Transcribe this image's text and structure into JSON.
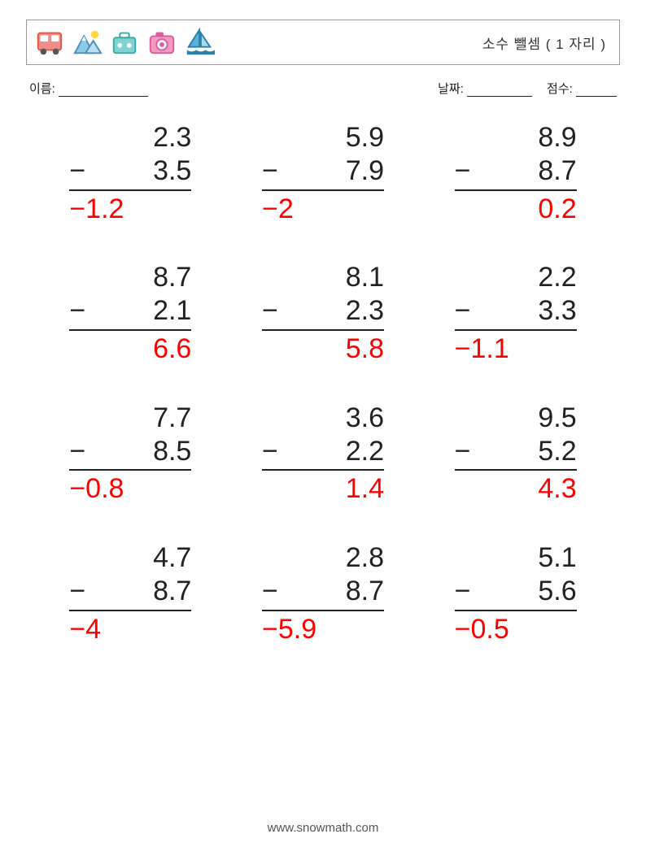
{
  "header": {
    "title": "소수 뺄셈 ( 1 자리 )"
  },
  "labels": {
    "name": "이름:",
    "date": "날짜:",
    "score": "점수:"
  },
  "style": {
    "problem_fontsize": 34,
    "text_color": "#222222",
    "answer_color": "#ff0000",
    "rule_color": "#222222",
    "border_color": "#999999",
    "background_color": "#ffffff"
  },
  "icons": [
    {
      "name": "bus-icon",
      "fill": "#f28c8c",
      "stroke": "#d95b43"
    },
    {
      "name": "mountain-icon",
      "fill": "#8fc9e8",
      "stroke": "#4a90b8"
    },
    {
      "name": "suitcase-icon",
      "fill": "#7fd3d3",
      "stroke": "#3aa7a7"
    },
    {
      "name": "camera-icon",
      "fill": "#f49ac1",
      "stroke": "#d95ba0"
    },
    {
      "name": "sailboat-icon",
      "fill": "#5ab0d6",
      "stroke": "#2c7fa8"
    }
  ],
  "problems": [
    {
      "a": "2.3",
      "b": "3.5",
      "ans": "−1.2"
    },
    {
      "a": "5.9",
      "b": "7.9",
      "ans": "−2"
    },
    {
      "a": "8.9",
      "b": "8.7",
      "ans": "0.2"
    },
    {
      "a": "8.7",
      "b": "2.1",
      "ans": "6.6"
    },
    {
      "a": "8.1",
      "b": "2.3",
      "ans": "5.8"
    },
    {
      "a": "2.2",
      "b": "3.3",
      "ans": "−1.1"
    },
    {
      "a": "7.7",
      "b": "8.5",
      "ans": "−0.8"
    },
    {
      "a": "3.6",
      "b": "2.2",
      "ans": "1.4"
    },
    {
      "a": "9.5",
      "b": "5.2",
      "ans": "4.3"
    },
    {
      "a": "4.7",
      "b": "8.7",
      "ans": "−4"
    },
    {
      "a": "2.8",
      "b": "8.7",
      "ans": "−5.9"
    },
    {
      "a": "5.1",
      "b": "5.6",
      "ans": "−0.5"
    }
  ],
  "operator": "−",
  "footer": "www.snowmath.com"
}
